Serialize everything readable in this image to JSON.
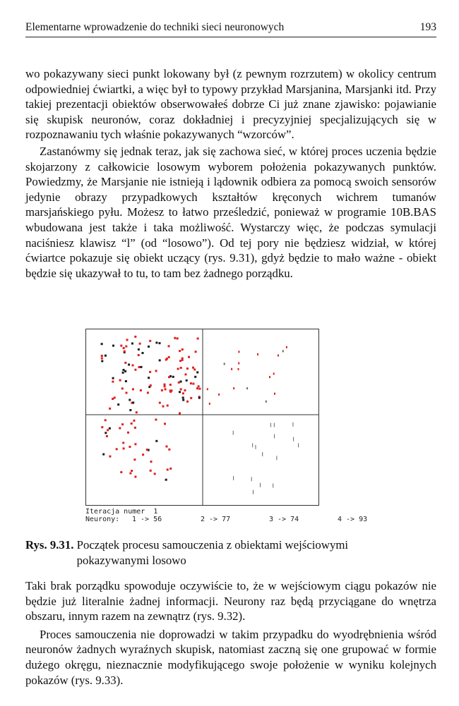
{
  "header": {
    "running_title": "Elementarne wprowadzenie do techniki sieci neuronowych",
    "page_number": "193"
  },
  "paragraphs_top": [
    "wo pokazywany sieci punkt lokowany był (z pewnym rozrzutem) w okolicy centrum odpowiedniej ćwiartki, a więc był to typowy przykład Marsjanina, Marsjanki itd. Przy takiej prezentacji obiektów obserwowałeś dobrze Ci już znane zjawisko: pojawianie się skupisk neuronów, coraz dokładniej i precyzyjniej specjalizujących się w rozpoznawaniu tych właśnie pokazywanych “wzorców”.",
    "Zastanówmy się jednak teraz, jak się zachowa sieć, w której proces uczenia będzie skojarzony z całkowicie losowym wyborem położenia pokazywanych punktów. Powiedzmy, że Marsjanie nie istnieją i lądownik odbiera za pomocą swoich sensorów jedynie obrazy przypadkowych kształtów kręconych wichrem tumanów marsjańskiego pyłu. Możesz to łatwo prześledzić, ponieważ w programie 10B.BAS wbudowana jest także i taka możliwość. Wystarczy więc, że podczas symulacji naciśniesz klawisz “l” (od “losowo”). Od tej pory nie będziesz widział, w której ćwiartce pokazuje się obiekt uczący (rys. 9.31), gdyż będzie to mało ważne - obiekt będzie się ukazywał to tu, to tam bez żadnego porządku."
  ],
  "figure": {
    "status_line1": "Iteracja numer  1",
    "neurons_label": "Neurony:",
    "counts": [
      "1 -> 56",
      "2 -> 77",
      "3 -> 74",
      "4 -> 93"
    ]
  },
  "caption": {
    "label": "Rys. 9.31.",
    "text": "Początek procesu samouczenia z obiektami wejściowymi pokazywanymi losowo"
  },
  "paragraphs_bottom": [
    "Taki brak porządku spowoduje oczywiście to, że w wejściowym ciągu pokazów nie będzie już literalnie żadnej informacji. Neurony raz będą przyciągane do wnętrza obszaru, innym razem na zewnątrz (rys. 9.32).",
    "Proces samouczenia nie doprowadzi w takim przypadku do wyodrębnienia wśród neuronów żadnych wyraźnych skupisk, natomiast zaczną się one grupować w formie dużego okręgu, nieznacznie modyfikującego swoje położenie w wyniku kolejnych pokazów (rys. 9.33)."
  ],
  "colors": {
    "red_dot": "#e02020",
    "dark_dot": "#1a1a1a",
    "grey_dot": "#666666"
  }
}
